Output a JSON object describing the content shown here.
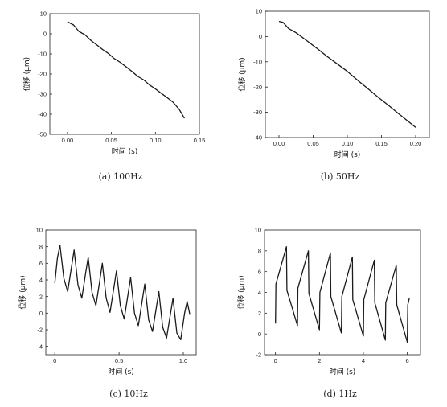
{
  "chart_data": [
    {
      "id": "a",
      "type": "line",
      "caption": "(a) 100Hz",
      "xlabel": "时间 (s)",
      "ylabel": "位移 (μm)",
      "xlim": [
        -0.02,
        0.15
      ],
      "ylim": [
        -50,
        10
      ],
      "xticks": [
        "0.00",
        "0.05",
        "0.10",
        "0.15"
      ],
      "xtick_values": [
        0.0,
        0.05,
        0.1,
        0.15
      ],
      "yticks": [
        "10",
        "0",
        "-10",
        "-20",
        "-30",
        "-40",
        "-50"
      ],
      "ytick_values": [
        10,
        0,
        -10,
        -20,
        -30,
        -40,
        -50
      ],
      "series": [
        {
          "x": [
            0.0,
            0.007,
            0.013,
            0.02,
            0.027,
            0.033,
            0.04,
            0.047,
            0.053,
            0.06,
            0.067,
            0.073,
            0.08,
            0.087,
            0.093,
            0.1,
            0.107,
            0.113,
            0.12,
            0.127,
            0.133
          ],
          "y": [
            6.0,
            4.4,
            1.2,
            -0.5,
            -3.4,
            -5.4,
            -7.8,
            -9.9,
            -12.3,
            -14.2,
            -16.5,
            -18.6,
            -21.2,
            -23.0,
            -25.3,
            -27.4,
            -29.7,
            -31.6,
            -34.0,
            -37.5,
            -42.0
          ]
        }
      ]
    },
    {
      "id": "b",
      "type": "line",
      "caption": "(b) 50Hz",
      "xlabel": "时间 (s)",
      "ylabel": "位移 (μm)",
      "xlim": [
        -0.02,
        0.22
      ],
      "ylim": [
        -40,
        10
      ],
      "xticks": [
        "0.00",
        "0.05",
        "0.10",
        "0.15",
        "0.20"
      ],
      "xtick_values": [
        0.0,
        0.05,
        0.1,
        0.15,
        0.2
      ],
      "yticks": [
        "10",
        "0",
        "-10",
        "-20",
        "-30",
        "-40"
      ],
      "ytick_values": [
        10,
        0,
        -10,
        -20,
        -30,
        -40
      ],
      "series": [
        {
          "x": [
            0.0,
            0.006,
            0.014,
            0.025,
            0.04,
            0.055,
            0.07,
            0.085,
            0.1,
            0.115,
            0.13,
            0.145,
            0.16,
            0.175,
            0.19,
            0.2
          ],
          "y": [
            6.0,
            5.6,
            3.2,
            1.5,
            -1.5,
            -4.6,
            -7.8,
            -10.8,
            -13.8,
            -17.3,
            -20.6,
            -24.0,
            -27.2,
            -30.5,
            -33.8,
            -36.0
          ]
        }
      ]
    },
    {
      "id": "c",
      "type": "line",
      "caption": "(c) 10Hz",
      "xlabel": "时间 (s)",
      "ylabel": "位移 (μm)",
      "xlim": [
        -0.07,
        1.1
      ],
      "ylim": [
        -5,
        10
      ],
      "xticks": [
        "0",
        "0.5",
        "1.0"
      ],
      "xtick_values": [
        0,
        0.5,
        1.0
      ],
      "yticks": [
        "10",
        "8",
        "6",
        "4",
        "2",
        "0",
        "-2",
        "-4"
      ],
      "ytick_values": [
        10,
        8,
        6,
        4,
        2,
        0,
        -2,
        -4
      ],
      "series": [
        {
          "x": [
            0.0,
            0.02,
            0.04,
            0.07,
            0.1,
            0.13,
            0.15,
            0.18,
            0.21,
            0.24,
            0.26,
            0.29,
            0.32,
            0.35,
            0.37,
            0.4,
            0.43,
            0.46,
            0.48,
            0.51,
            0.54,
            0.57,
            0.59,
            0.62,
            0.65,
            0.68,
            0.7,
            0.73,
            0.76,
            0.79,
            0.81,
            0.84,
            0.87,
            0.9,
            0.92,
            0.95,
            0.98,
            1.01,
            1.03,
            1.05
          ],
          "y": [
            3.6,
            6.6,
            8.2,
            4.2,
            2.6,
            5.6,
            7.6,
            3.4,
            1.8,
            4.8,
            6.7,
            2.5,
            0.9,
            3.9,
            6.0,
            1.8,
            0.1,
            3.1,
            5.1,
            0.9,
            -0.7,
            2.3,
            4.3,
            0.0,
            -1.5,
            1.5,
            3.5,
            -0.8,
            -2.2,
            0.7,
            2.6,
            -1.7,
            -3.0,
            -0.1,
            1.8,
            -2.4,
            -3.2,
            0.0,
            1.4,
            -0.1
          ]
        }
      ]
    },
    {
      "id": "d",
      "type": "line",
      "caption": "(d) 1Hz",
      "xlabel": "时间 (s)",
      "ylabel": "位移 (μm)",
      "xlim": [
        -0.5,
        6.6
      ],
      "ylim": [
        -2,
        10
      ],
      "xticks": [
        "0",
        "2",
        "4",
        "6"
      ],
      "xtick_values": [
        0,
        2,
        4,
        6
      ],
      "yticks": [
        "10",
        "8",
        "6",
        "4",
        "2",
        "0",
        "-2"
      ],
      "ytick_values": [
        10,
        8,
        6,
        4,
        2,
        0,
        -2
      ],
      "series": [
        {
          "x": [
            0.0,
            0.02,
            0.5,
            0.52,
            1.0,
            1.02,
            1.5,
            1.52,
            2.0,
            2.02,
            2.5,
            2.52,
            3.0,
            3.02,
            3.5,
            3.52,
            4.0,
            4.02,
            4.5,
            4.52,
            5.0,
            5.02,
            5.5,
            5.52,
            6.0,
            6.02,
            6.1
          ],
          "y": [
            1.0,
            4.8,
            8.4,
            4.2,
            0.8,
            4.4,
            8.0,
            3.9,
            0.4,
            4.0,
            7.8,
            3.6,
            0.1,
            3.6,
            7.4,
            3.3,
            -0.2,
            3.3,
            7.1,
            3.0,
            -0.6,
            3.0,
            6.6,
            2.8,
            -0.8,
            2.8,
            3.5
          ]
        }
      ]
    }
  ],
  "style": {
    "line_color": "#1a1a1a",
    "axis_color": "#222222"
  }
}
